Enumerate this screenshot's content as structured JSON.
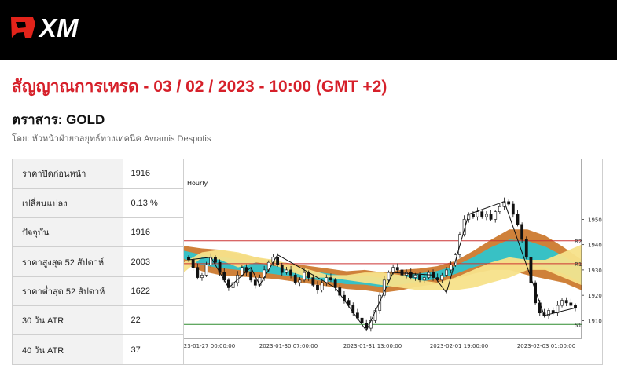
{
  "brand": {
    "name": "XM",
    "colors": {
      "header_bg": "#000000",
      "logo_mark": "#e2231a",
      "accent": "#d6202a"
    }
  },
  "header": {
    "title": "สัญญาณการเทรด - 03 / 02 / 2023 - 10:00 (GMT +2)",
    "instrument": "ตราสาร: GOLD",
    "author": "โดย: หัวหน้าฝ่ายกลยุทธ์ทางเทคนิค Avramis Despotis"
  },
  "stats": [
    {
      "label": "ราคาปิดก่อนหน้า",
      "value": "1916"
    },
    {
      "label": "เปลี่ยนแปลง",
      "value": "0.13 %"
    },
    {
      "label": "ปัจจุบัน",
      "value": "1916"
    },
    {
      "label": "ราคาสูงสุด 52 สัปดาห์",
      "value": "2003"
    },
    {
      "label": "ราคาต่ำสุด 52 สัปดาห์",
      "value": "1622"
    },
    {
      "label": "30 วัน ATR",
      "value": "22"
    },
    {
      "label": "40 วัน ATR",
      "value": "37"
    }
  ],
  "chart_data": {
    "type": "candlestick",
    "title": "Hourly",
    "ylim": [
      1903,
      1965
    ],
    "y_ticks": [
      1910,
      1920,
      1930,
      1940,
      1950
    ],
    "x_tick_labels": [
      "2023-01-27 00:00:00",
      "2023-01-30 07:00:00",
      "2023-01-31 13:00:00",
      "2023-02-01 19:00:00",
      "2023-02-03 01:00:00"
    ],
    "levels": [
      {
        "name": "R2",
        "value": 1941.5,
        "color": "#cc3333"
      },
      {
        "name": "R1",
        "value": 1932.5,
        "color": "#cc3333"
      },
      {
        "name": "S1",
        "value": 1908.5,
        "color": "#2e8b2e"
      }
    ],
    "closes": [
      1934,
      1931,
      1927,
      1928,
      1932,
      1935,
      1933,
      1929,
      1926,
      1923,
      1925,
      1928,
      1931,
      1929,
      1926,
      1924,
      1927,
      1930,
      1933,
      1935,
      1932,
      1929,
      1930,
      1928,
      1925,
      1926,
      1929,
      1927,
      1924,
      1922,
      1925,
      1927,
      1926,
      1923,
      1920,
      1918,
      1916,
      1913,
      1911,
      1909,
      1907,
      1910,
      1914,
      1920,
      1926,
      1929,
      1931,
      1930,
      1928,
      1929,
      1927,
      1928,
      1926,
      1927,
      1929,
      1927,
      1926,
      1928,
      1930,
      1932,
      1936,
      1944,
      1950,
      1952,
      1951,
      1953,
      1951,
      1952,
      1950,
      1953,
      1955,
      1957,
      1956,
      1952,
      1948,
      1942,
      1935,
      1925,
      1917,
      1913,
      1912,
      1914,
      1913,
      1916,
      1918,
      1917,
      1916,
      1915
    ],
    "bands": {
      "outer_color": "#cc7a2f",
      "inner_color": "#2fc4cc",
      "cloud_color": "#f7e28a",
      "center": [
        1936,
        1934,
        1933,
        1932,
        1931,
        1930,
        1929,
        1928,
        1927,
        1926,
        1926,
        1925,
        1926,
        1927,
        1928,
        1930,
        1933,
        1936,
        1938,
        1937,
        1935,
        1932,
        1928
      ],
      "outer_half": [
        3.5,
        4.5,
        5,
        4.5,
        4,
        3.5,
        3.5,
        3.5,
        3.5,
        3.5,
        4,
        4,
        4,
        3.5,
        3.5,
        3.5,
        4.5,
        6,
        8,
        9,
        8.5,
        7,
        6
      ],
      "inner_half": [
        1.6,
        2,
        2.3,
        2,
        1.8,
        1.6,
        1.6,
        1.6,
        1.6,
        1.6,
        1.8,
        1.8,
        1.8,
        1.6,
        1.6,
        1.6,
        2,
        3,
        4,
        4.5,
        4.2,
        3.5,
        3
      ],
      "cloud_a": [
        1929,
        1935,
        1934,
        1931,
        1933,
        1934,
        1932,
        1930,
        1928,
        1926,
        1925,
        1924,
        1923,
        1922,
        1922,
        1922,
        1923,
        1925,
        1927,
        1930,
        1934,
        1937,
        1940
      ],
      "cloud_b": [
        1933,
        1937,
        1938,
        1937,
        1935,
        1932,
        1929,
        1927,
        1927,
        1928,
        1929,
        1929,
        1928,
        1926,
        1925,
        1927,
        1930,
        1933,
        1935,
        1934,
        1930,
        1927,
        1924
      ]
    },
    "zigzag": [
      [
        0,
        1934
      ],
      [
        5,
        1935
      ],
      [
        9,
        1923
      ],
      [
        14,
        1931
      ],
      [
        16,
        1924
      ],
      [
        20,
        1936
      ],
      [
        33,
        1923
      ],
      [
        40,
        1906
      ],
      [
        46,
        1929
      ],
      [
        55,
        1928
      ],
      [
        58,
        1921
      ],
      [
        63,
        1952
      ],
      [
        71,
        1957
      ],
      [
        80,
        1912
      ],
      [
        87,
        1915
      ]
    ]
  }
}
